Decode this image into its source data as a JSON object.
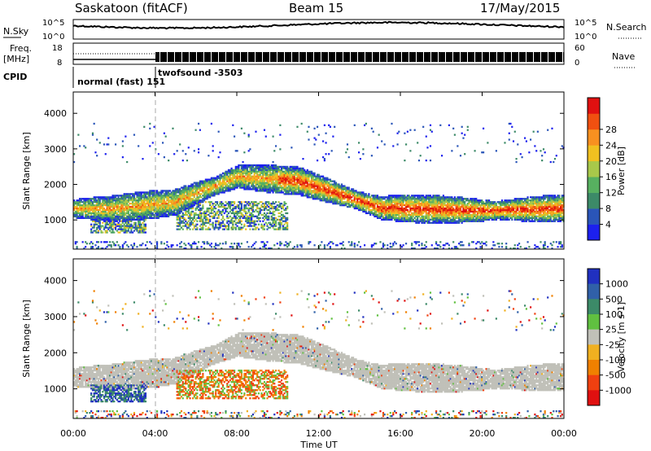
{
  "header": {
    "station": "Saskatoon (fitACF)",
    "beam": "Beam 15",
    "date": "17/May/2015"
  },
  "top_panels": {
    "nsky_label": "N.Sky",
    "nsearch_label": "N.Search",
    "nsky_ticks": [
      "10^5",
      "10^0"
    ],
    "nsearch_ticks": [
      "10^5",
      "10^0"
    ],
    "freq_label_1": "Freq.",
    "freq_label_2": "[MHz]",
    "freq_ticks": [
      "18",
      "8"
    ],
    "nave_label": "Nave",
    "nave_ticks": [
      "60",
      "0"
    ],
    "cpid_label": "CPID",
    "cpid_mode_1": "normal (fast) 151",
    "cpid_mode_2": "twofsound -3503"
  },
  "axes": {
    "xlabel": "Time UT",
    "ylabel": "Slant Range [km]",
    "x_ticks": [
      "00:00",
      "04:00",
      "08:00",
      "12:00",
      "16:00",
      "20:00",
      "00:00"
    ],
    "y_ticks": [
      "1000",
      "2000",
      "3000",
      "4000"
    ]
  },
  "chart_data": [
    {
      "type": "heatmap",
      "name": "power",
      "xlabel": "Time UT",
      "ylabel": "Slant Range [km]",
      "xlim": [
        0,
        24
      ],
      "ylim": [
        180,
        4600
      ],
      "colorbar": {
        "label": "Power [dB]",
        "ticks": [
          "4",
          "8",
          "12",
          "16",
          "20",
          "24",
          "28"
        ],
        "colors": [
          "#1c20ee",
          "#2a55b8",
          "#3c8a68",
          "#57b060",
          "#a8c84a",
          "#f0c020",
          "#f89020",
          "#f05010",
          "#e01010"
        ]
      },
      "bands": [
        {
          "t": [
            0,
            24
          ],
          "r": [
            800,
            2300
          ],
          "desc": "main echo band"
        }
      ]
    },
    {
      "type": "heatmap",
      "name": "velocity",
      "xlabel": "Time UT",
      "ylabel": "Slant Range [km]",
      "xlim": [
        0,
        24
      ],
      "ylim": [
        180,
        4600
      ],
      "colorbar": {
        "label": "Velocity [m s-1]",
        "ticks": [
          "1000",
          "500",
          "100",
          "25",
          "-25",
          "-100",
          "-500",
          "-1000"
        ],
        "colors": [
          "#2030c0",
          "#3060a8",
          "#3c8a68",
          "#60c040",
          "#c0c0b8",
          "#f0b020",
          "#f08000",
          "#f04010",
          "#e01010"
        ]
      }
    }
  ]
}
